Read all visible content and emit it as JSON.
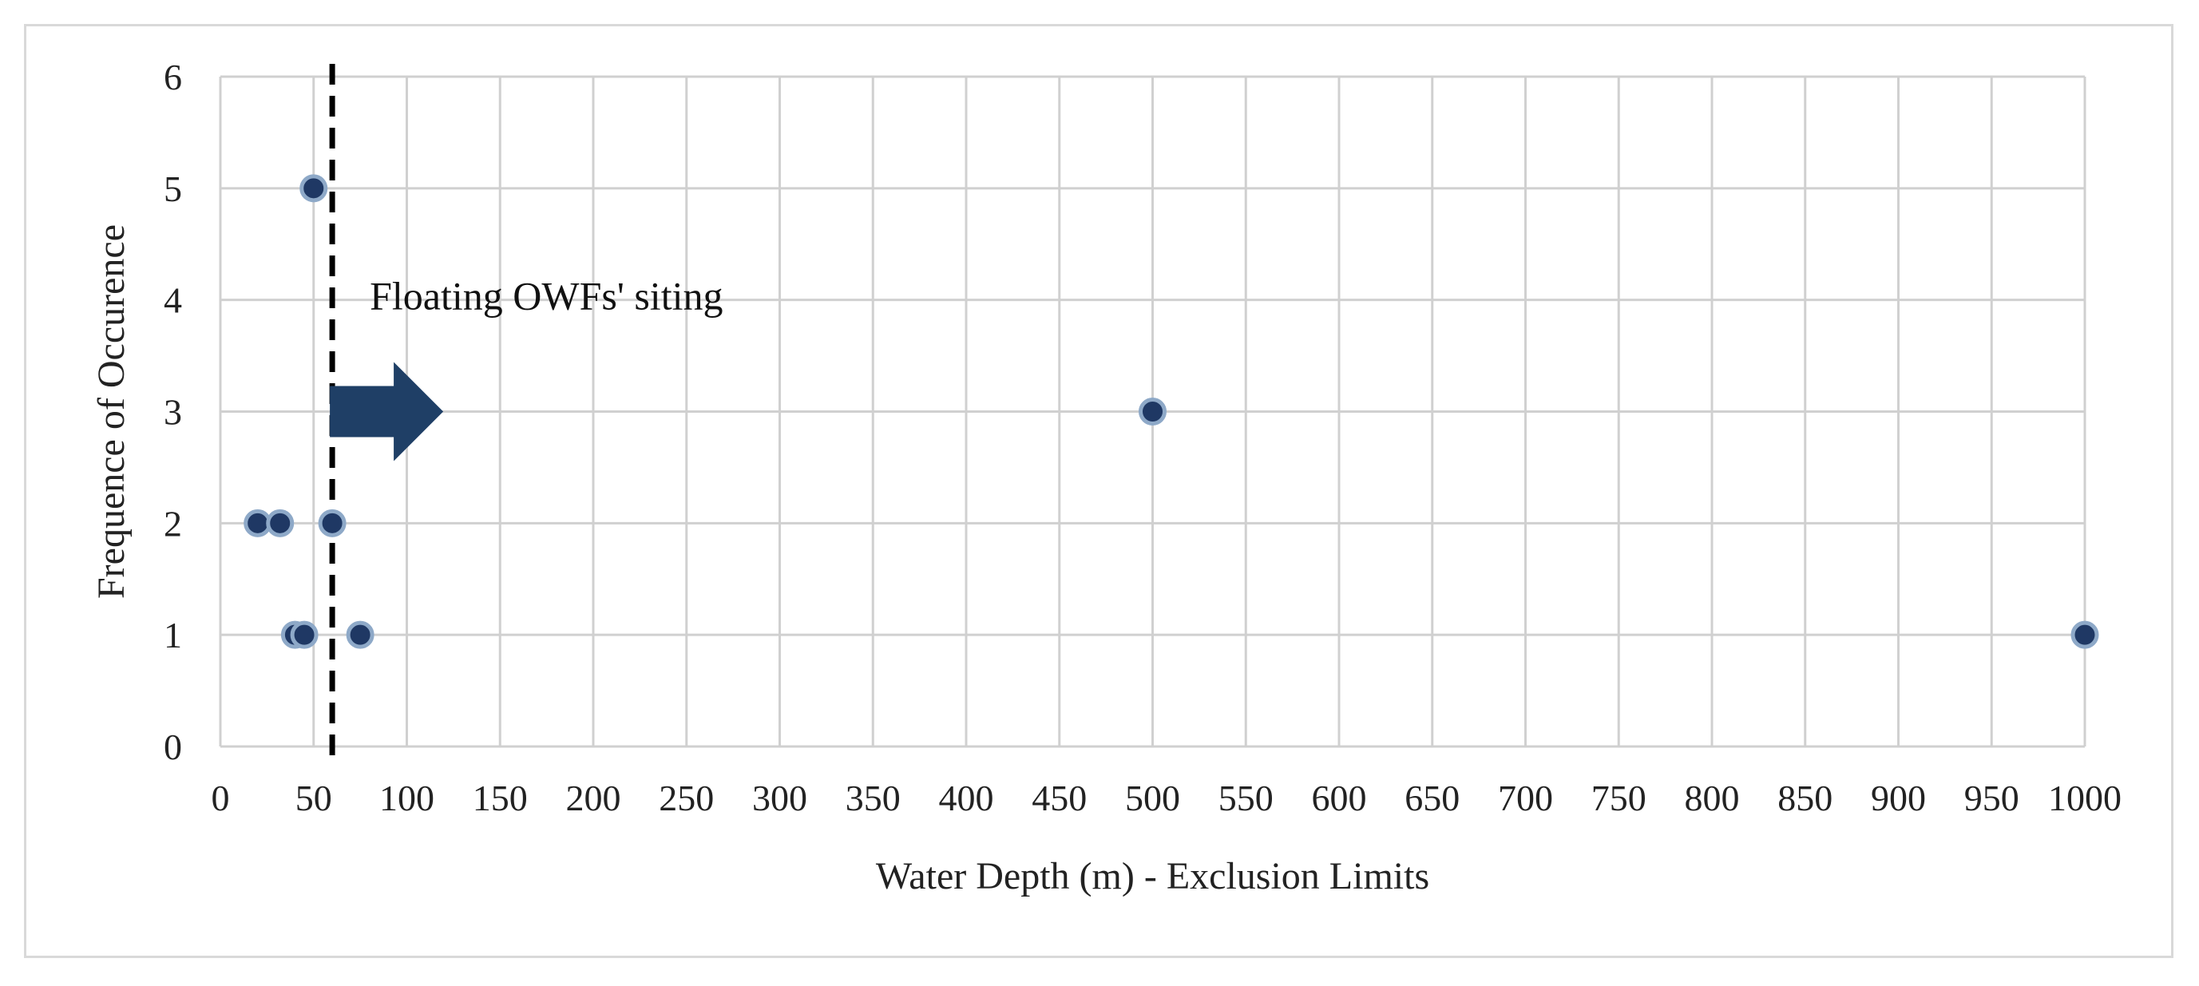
{
  "chart_data": {
    "type": "scatter",
    "xlabel": "Water Depth (m) - Exclusion Limits",
    "ylabel": "Frequence of Occurence",
    "xlim": [
      0,
      1000
    ],
    "ylim": [
      0,
      6
    ],
    "x_ticks": [
      "0",
      "50",
      "100",
      "150",
      "200",
      "250",
      "300",
      "350",
      "400",
      "450",
      "500",
      "550",
      "600",
      "650",
      "700",
      "750",
      "800",
      "850",
      "900",
      "950",
      "1000"
    ],
    "y_ticks": [
      "0",
      "1",
      "2",
      "3",
      "4",
      "5",
      "6"
    ],
    "grid": true,
    "points": [
      {
        "x": 50,
        "y": 5
      },
      {
        "x": 500,
        "y": 3
      },
      {
        "x": 20,
        "y": 2
      },
      {
        "x": 32,
        "y": 2
      },
      {
        "x": 60,
        "y": 2
      },
      {
        "x": 40,
        "y": 1
      },
      {
        "x": 45,
        "y": 1
      },
      {
        "x": 75,
        "y": 1
      },
      {
        "x": 1000,
        "y": 1
      }
    ],
    "threshold_line_x": 60,
    "annotation": "Floating OWFs' siting",
    "colors": {
      "marker_fill": "#1f3864",
      "marker_stroke": "#8ea9c8",
      "grid": "#d0d0d0",
      "threshold_line": "#000000",
      "arrow": "#1f3f66"
    }
  }
}
